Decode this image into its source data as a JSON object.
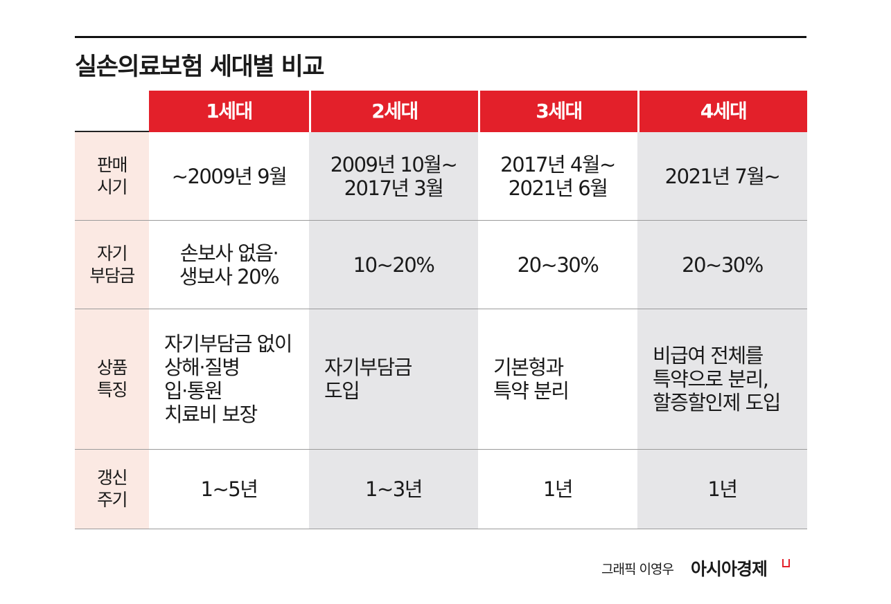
{
  "title": "실손의료보험 세대별 비교",
  "table": {
    "header": [
      "1세대",
      "2세대",
      "3세대",
      "4세대"
    ],
    "rows": [
      {
        "label": "판매\n시기",
        "cells": [
          "~2009년 9월",
          "2009년 10월~\n2017년 3월",
          "2017년 4월~\n2021년 6월",
          "2021년 7월~"
        ]
      },
      {
        "label": "자기\n부담금",
        "cells": [
          "손보사 없음·\n생보사 20%",
          "10~20%",
          "20~30%",
          "20~30%"
        ]
      },
      {
        "label": "상품\n특징",
        "cells": [
          "자기부담금 없이\n상해·질병\n입·통원\n치료비 보장",
          "자기부담금\n도입",
          "기본형과\n특약 분리",
          "비급여 전체를\n특약으로 분리,\n할증할인제 도입"
        ]
      },
      {
        "label": "갱신\n주기",
        "cells": [
          "1~5년",
          "1~3년",
          "1년",
          "1년"
        ]
      }
    ]
  },
  "footer": {
    "credit": "그래픽 이영우",
    "logo": "아시아경제"
  }
}
